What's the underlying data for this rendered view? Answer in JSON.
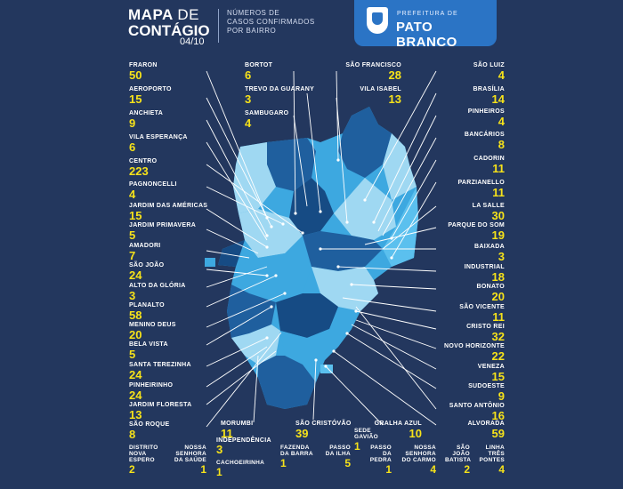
{
  "header": {
    "title_bold": "MAPA",
    "title_thin": "DE",
    "title_line2": "CONTÁGIO",
    "date": "04/10",
    "subtitle": [
      "NÚMEROS DE",
      "CASOS CONFIRMADOS",
      "POR BAIRRO"
    ],
    "brand_small": "PREFEITURA DE",
    "brand_city": "PATO BRANCO"
  },
  "colors": {
    "background": "#23375e",
    "brand_blue": "#2b74c5",
    "count_yellow": "#f6e21a",
    "map_light": "#9fd8f2",
    "map_mid": "#3da8e0",
    "map_dark": "#1f5f9e"
  },
  "neighborhoods": {
    "left": [
      {
        "name": "FRARON",
        "cases": "50"
      },
      {
        "name": "AEROPORTO",
        "cases": "15"
      },
      {
        "name": "ANCHIETA",
        "cases": "9"
      },
      {
        "name": "VILA ESPERANÇA",
        "cases": "6"
      },
      {
        "name": "CENTRO",
        "cases": "223"
      },
      {
        "name": "PAGNONCELLI",
        "cases": "4"
      },
      {
        "name": "JARDIM DAS AMÉRICAS",
        "cases": "15"
      },
      {
        "name": "JARDIM PRIMAVERA",
        "cases": "5"
      },
      {
        "name": "AMADORI",
        "cases": "7"
      },
      {
        "name": "SÃO JOÃO",
        "cases": "24"
      },
      {
        "name": "ALTO DA GLÓRIA",
        "cases": "3"
      },
      {
        "name": "PLANALTO",
        "cases": "58"
      },
      {
        "name": "MENINO DEUS",
        "cases": "20"
      },
      {
        "name": "BELA VISTA",
        "cases": "5"
      },
      {
        "name": "SANTA TEREZINHA",
        "cases": "24"
      },
      {
        "name": "PINHEIRINHO",
        "cases": "24"
      },
      {
        "name": "JARDIM FLORESTA",
        "cases": "13"
      },
      {
        "name": "SÃO ROQUE",
        "cases": "8"
      }
    ],
    "top_middle": [
      {
        "name": "BORTOT",
        "cases": "6"
      },
      {
        "name": "TREVO DA GUARANY",
        "cases": "3"
      },
      {
        "name": "SAMBUGARO",
        "cases": "4"
      }
    ],
    "top_right_pair": [
      {
        "name": "SÃO FRANCISCO",
        "cases": "28"
      },
      {
        "name": "VILA ISABEL",
        "cases": "13"
      }
    ],
    "right": [
      {
        "name": "SÃO LUIZ",
        "cases": "4"
      },
      {
        "name": "BRASÍLIA",
        "cases": "14"
      },
      {
        "name": "PINHEIROS",
        "cases": "4"
      },
      {
        "name": "BANCÁRIOS",
        "cases": "8"
      },
      {
        "name": "CADORIN",
        "cases": "11"
      },
      {
        "name": "PARZIANELLO",
        "cases": "11"
      },
      {
        "name": "LA SALLE",
        "cases": "30"
      },
      {
        "name": "PARQUE DO SOM",
        "cases": "19"
      },
      {
        "name": "BAIXADA",
        "cases": "3"
      },
      {
        "name": "INDUSTRIAL",
        "cases": "18"
      },
      {
        "name": "BONATO",
        "cases": "20"
      },
      {
        "name": "SÃO VICENTE",
        "cases": "11"
      },
      {
        "name": "CRISTO REI",
        "cases": "32"
      },
      {
        "name": "NOVO HORIZONTE",
        "cases": "22"
      },
      {
        "name": "VENEZA",
        "cases": "15"
      },
      {
        "name": "SUDOESTE",
        "cases": "9"
      },
      {
        "name": "SANTO ANTÔNIO",
        "cases": "16"
      },
      {
        "name": "ALVORADA",
        "cases": "59"
      }
    ],
    "bottom_upper": [
      {
        "name": "MORUMBI",
        "cases": "11"
      },
      {
        "name": "SÃO CRISTÓVÃO",
        "cases": "39"
      },
      {
        "name": "GRALHA AZUL",
        "cases": "10"
      }
    ],
    "bottom_middle": [
      {
        "name": "INDEPENDÊNCIA",
        "cases": "3"
      },
      {
        "name": "SEDE GAVIÃO",
        "cases": "1"
      }
    ],
    "bottom_row": [
      {
        "name": "DISTRITO NOVA ESPERO",
        "cases": "2"
      },
      {
        "name": "NOSSA SENHORA DA SAÚDE",
        "cases": "1"
      },
      {
        "name": "CACHOEIRINHA",
        "cases": "1"
      },
      {
        "name": "FAZENDA DA BARRA",
        "cases": "1"
      },
      {
        "name": "PASSO DA ILHA",
        "cases": "5"
      },
      {
        "name": "PASSO DA PEDRA",
        "cases": "1"
      },
      {
        "name": "NOSSA SENHORA DO CARMO",
        "cases": "4"
      },
      {
        "name": "SÃO JOÃO BATISTA",
        "cases": "2"
      },
      {
        "name": "LINHA TRÊS PONTES",
        "cases": "4"
      }
    ]
  }
}
